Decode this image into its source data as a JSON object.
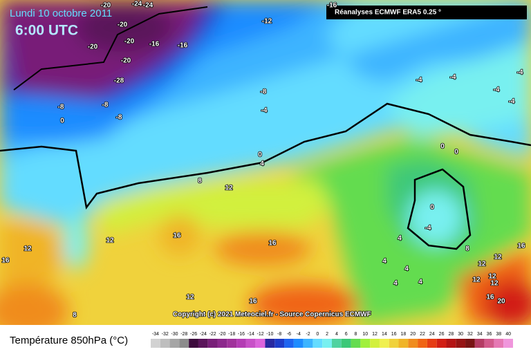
{
  "header": {
    "date": "Lundi 10 octobre 2011",
    "time": "6:00 UTC",
    "source": "Réanalyses ECMWF ERA5 0.25 °",
    "copyright": "Copyright (c) 2021 Meteociel.fr - Source Copernicus ECMWF"
  },
  "legend": {
    "title": "Température 850hPa (°C)",
    "ticks": [
      -34,
      -32,
      -30,
      -28,
      -26,
      -24,
      -22,
      -20,
      -18,
      -16,
      -14,
      -12,
      -10,
      -8,
      -6,
      -4,
      -2,
      0,
      2,
      4,
      6,
      8,
      10,
      12,
      14,
      16,
      18,
      20,
      22,
      24,
      26,
      28,
      30,
      32,
      34,
      36,
      38,
      40
    ],
    "colors": [
      "#d2d2d2",
      "#bebebe",
      "#a5a5a5",
      "#8c8c8c",
      "#3c0a3c",
      "#5a145a",
      "#781e78",
      "#8c288c",
      "#a0329b",
      "#b43cb4",
      "#c850c8",
      "#dc64dc",
      "#2828a0",
      "#1e3cc8",
      "#1e64f0",
      "#1e8cff",
      "#3cb4ff",
      "#64dcff",
      "#78f0f0",
      "#50d2a0",
      "#3cc878",
      "#64dc50",
      "#a0f03c",
      "#d2f03c",
      "#f0f050",
      "#f0d23c",
      "#f0b428",
      "#f08c1e",
      "#f06414",
      "#e63c14",
      "#d21e14",
      "#b41414",
      "#961414",
      "#781414",
      "#b43c64",
      "#d25a8c",
      "#e678b4",
      "#f096dc"
    ]
  },
  "contour_labels": [
    -20,
    -24,
    -24,
    -20,
    -12,
    -16,
    -20,
    -20,
    -16,
    -16,
    -20,
    -28,
    -8,
    -8,
    -8,
    0,
    -8,
    -4,
    -4,
    -4,
    -4,
    -4,
    -4,
    0,
    4,
    8,
    12,
    0,
    0,
    0,
    -4,
    4,
    12,
    16,
    16,
    12,
    16,
    4,
    4,
    4,
    4,
    8,
    12,
    12,
    16,
    12,
    12,
    12,
    16,
    20,
    8,
    12,
    16
  ]
}
